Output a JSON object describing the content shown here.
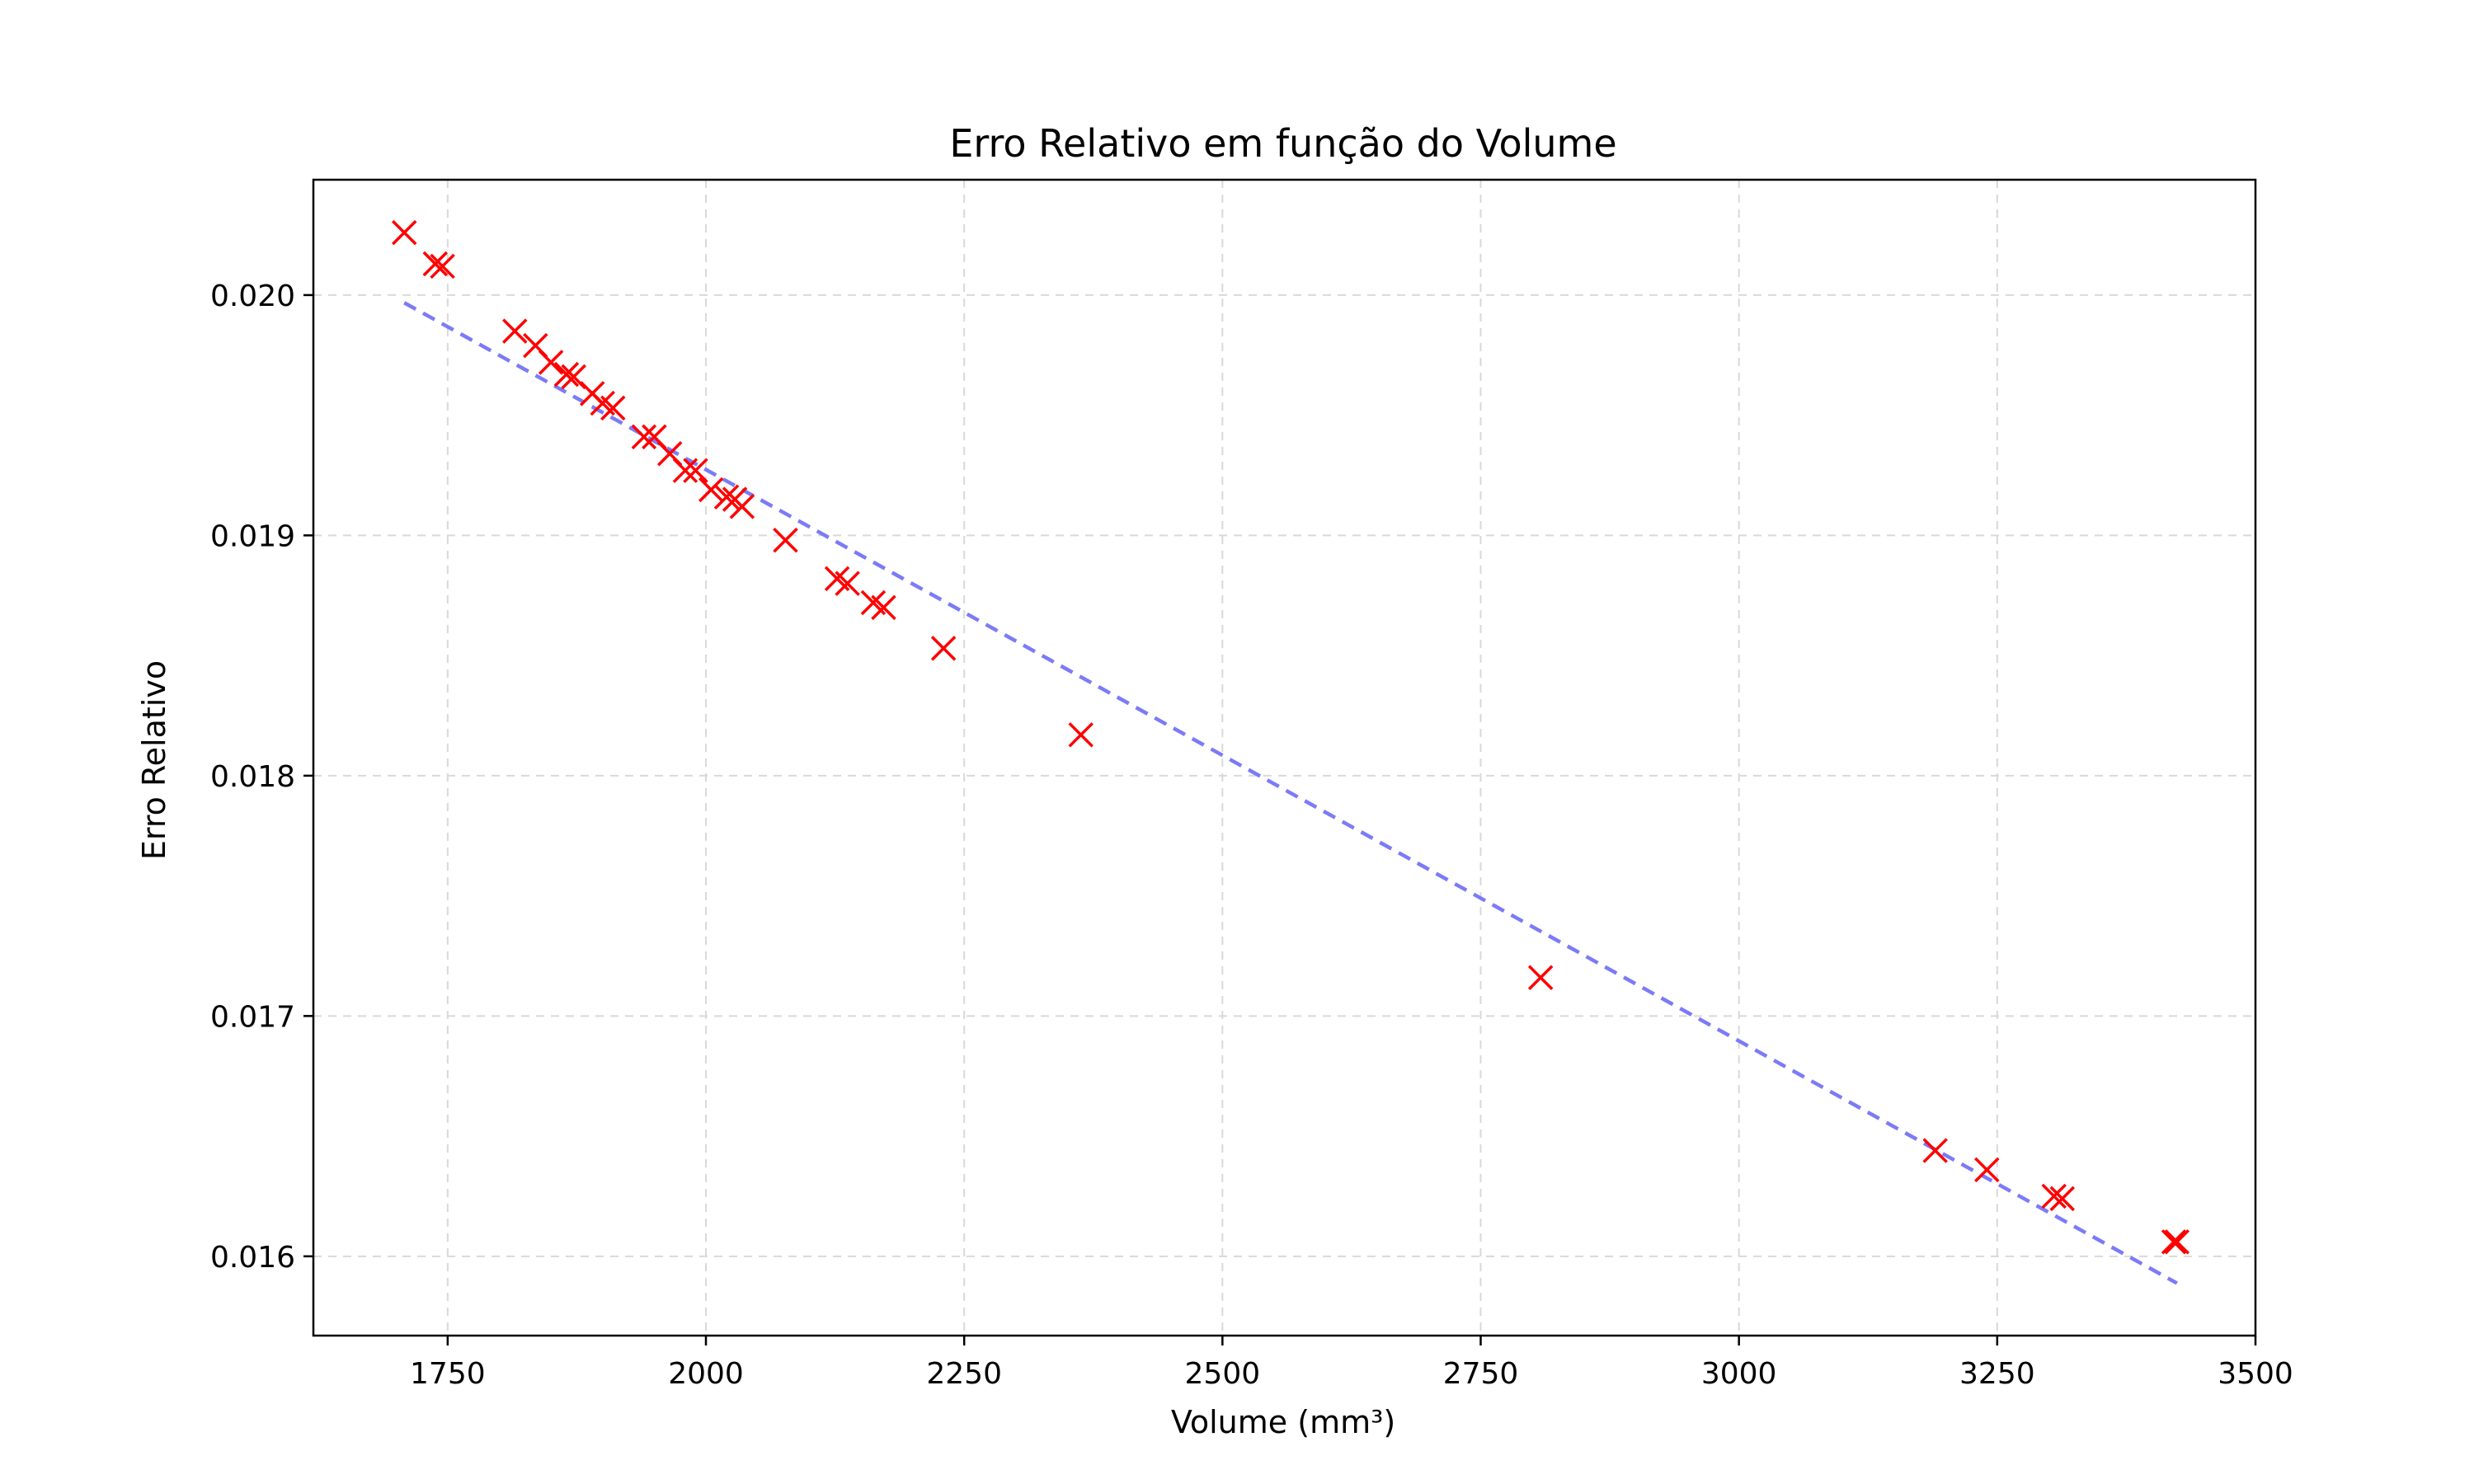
{
  "chart_data": {
    "type": "scatter",
    "title": "Erro Relativo em função do Volume",
    "xlabel": "Volume (mm³)",
    "ylabel": "Erro Relativo",
    "xlim": [
      1620,
      3500
    ],
    "ylim": [
      0.01567,
      0.02048
    ],
    "xticks": [
      1750,
      2000,
      2250,
      2500,
      2750,
      3000,
      3250,
      3500
    ],
    "yticks": [
      0.016,
      0.017,
      0.018,
      0.019,
      0.02
    ],
    "xtick_labels": [
      "1750",
      "2000",
      "2250",
      "2500",
      "2750",
      "3000",
      "3250",
      "3500"
    ],
    "ytick_labels": [
      "0.016",
      "0.017",
      "0.018",
      "0.019",
      "0.020"
    ],
    "grid": true,
    "colors": {
      "points": "#ff0000",
      "trend": "#7b7bf7",
      "grid": "#d9d9d9",
      "axes": "#000000"
    },
    "series": [
      {
        "marker": "x",
        "x": [
          1708,
          1738,
          1745,
          1815,
          1835,
          1850,
          1865,
          1872,
          1890,
          1900,
          1910,
          1940,
          1950,
          1965,
          1980,
          1990,
          2005,
          2020,
          2028,
          2035,
          2077,
          2127,
          2137,
          2162,
          2172,
          2230,
          2363,
          2808,
          3190,
          3240,
          3305,
          3313,
          3421,
          3424
        ],
        "y": [
          0.02026,
          0.02013,
          0.02012,
          0.01985,
          0.01979,
          0.01972,
          0.01967,
          0.01966,
          0.01959,
          0.01955,
          0.01953,
          0.01941,
          0.01941,
          0.01934,
          0.01927,
          0.01927,
          0.01919,
          0.01916,
          0.01915,
          0.01912,
          0.01898,
          0.01882,
          0.0188,
          0.01872,
          0.0187,
          0.01853,
          0.01817,
          0.01716,
          0.01644,
          0.01636,
          0.01625,
          0.01624,
          0.01606,
          0.01606
        ]
      }
    ],
    "trendline": {
      "style": "dashed",
      "x": [
        1708,
        3424
      ],
      "y": [
        0.019968,
        0.015888
      ]
    }
  }
}
